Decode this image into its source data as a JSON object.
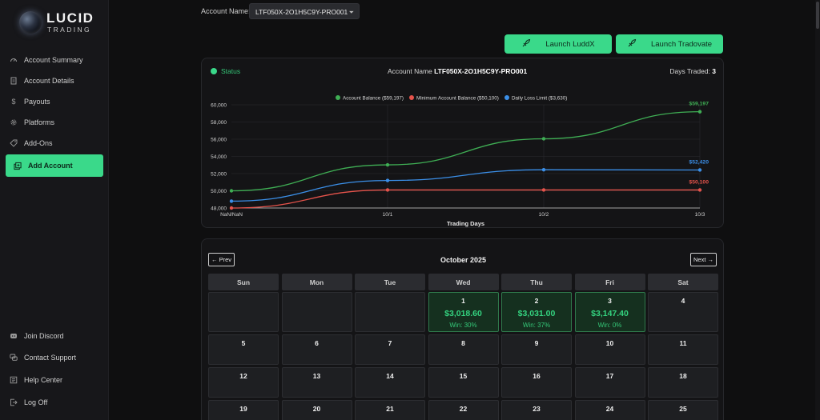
{
  "brand": {
    "name": "LUCID",
    "sub": "TRADING"
  },
  "sidebar": {
    "items": [
      {
        "label": "Account Summary",
        "icon": "gauge-icon"
      },
      {
        "label": "Account Details",
        "icon": "document-icon"
      },
      {
        "label": "Payouts",
        "icon": "dollar-icon"
      },
      {
        "label": "Platforms",
        "icon": "gear-icon"
      },
      {
        "label": "Add-Ons",
        "icon": "tag-icon"
      },
      {
        "label": "Add Account",
        "icon": "add-account-icon",
        "active": true
      }
    ],
    "bottom": [
      {
        "label": "Join Discord",
        "icon": "discord-icon"
      },
      {
        "label": "Contact Support",
        "icon": "chat-icon"
      },
      {
        "label": "Help Center",
        "icon": "help-icon"
      },
      {
        "label": "Log Off",
        "icon": "logout-icon"
      }
    ]
  },
  "account": {
    "label": "Account Name:",
    "selected": "LTF050X-2O1H5C9Y-PRO001"
  },
  "launch": {
    "luddx": "Launch LuddX",
    "tradovate": "Launch Tradovate"
  },
  "summary": {
    "status": "Status",
    "account_label": "Account Name",
    "account_value": "LTF050X-2O1H5C9Y-PRO001",
    "days_label": "Days Traded:",
    "days_value": "3"
  },
  "chart_data": {
    "type": "line",
    "title": "",
    "xlabel": "Trading Days",
    "ylabel": "",
    "categories": [
      "NaN/NaN",
      "10/1",
      "10/2",
      "10/3"
    ],
    "ylim": [
      48000,
      60000
    ],
    "yticks": [
      "48,000",
      "50,000",
      "52,000",
      "54,000",
      "56,000",
      "58,000",
      "60,000"
    ],
    "ytick_values": [
      48000,
      50000,
      52000,
      54000,
      56000,
      58000,
      60000
    ],
    "legend": "top-center",
    "series": [
      {
        "name": "Account Balance ($59,197)",
        "color": "#3fae54",
        "values": [
          50000,
          53018.6,
          56049.6,
          59197
        ],
        "end_label": "$59,197"
      },
      {
        "name": "Minimum Account Balance ($50,100)",
        "color": "#e5534b",
        "values": [
          48000,
          50100,
          50100,
          50100
        ],
        "end_label": "$50,100"
      },
      {
        "name": "Daily Loss Limit ($3,630)",
        "color": "#3b8fe8",
        "values": [
          48800,
          51200,
          52450,
          52420
        ],
        "end_label": "$52,420"
      }
    ]
  },
  "calendar": {
    "prev": "← Prev",
    "next": "Next →",
    "month": "October 2025",
    "weekdays": [
      "Sun",
      "Mon",
      "Tue",
      "Wed",
      "Thu",
      "Fri",
      "Sat"
    ],
    "weeks": [
      [
        null,
        null,
        null,
        {
          "day": "1",
          "pnl": "$3,018.60",
          "win": "Win: 30%"
        },
        {
          "day": "2",
          "pnl": "$3,031.00",
          "win": "Win: 37%"
        },
        {
          "day": "3",
          "pnl": "$3,147.40",
          "win": "Win: 0%"
        },
        {
          "day": "4"
        }
      ],
      [
        {
          "day": "5"
        },
        {
          "day": "6"
        },
        {
          "day": "7"
        },
        {
          "day": "8"
        },
        {
          "day": "9"
        },
        {
          "day": "10"
        },
        {
          "day": "11"
        }
      ],
      [
        {
          "day": "12"
        },
        {
          "day": "13"
        },
        {
          "day": "14"
        },
        {
          "day": "15"
        },
        {
          "day": "16"
        },
        {
          "day": "17"
        },
        {
          "day": "18"
        }
      ],
      [
        {
          "day": "19"
        },
        {
          "day": "20"
        },
        {
          "day": "21"
        },
        {
          "day": "22"
        },
        {
          "day": "23"
        },
        {
          "day": "24"
        },
        {
          "day": "25"
        }
      ]
    ]
  }
}
